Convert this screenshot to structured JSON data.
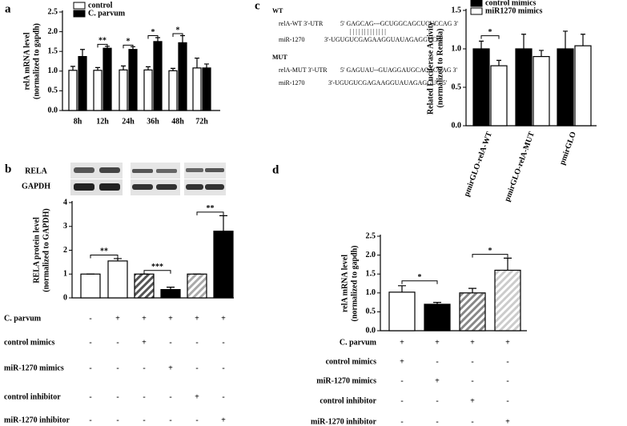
{
  "sequence_panel": {
    "wt_title": "WT",
    "wt_rows": [
      {
        "label": "relA-WT 3'-UTR",
        "seq": "5' GAGCAG---GCUGGCAGCUCUCCAG 3'"
      },
      {
        "label": "miR-1270",
        "seq": "3'-UGUGUCGAGAAGGUAUAGAGGUC-5'"
      }
    ],
    "wt_pairing": "| | |    | |   | | | | | | | |",
    "mut_title": "MUT",
    "mut_rows": [
      {
        "label": "relA-MUT 3'-UTR",
        "seq": "5' GAGUAU--GUAGGAUGCACACGAG 3'"
      },
      {
        "label": "miR-1270",
        "seq": "3'-UGUGUCGAGAAGGUAUAGAGGUC-5'"
      }
    ]
  },
  "blot_labels": [
    "RELA",
    "GAPDH"
  ],
  "chart_data": [
    {
      "type": "bar",
      "panel": "a",
      "ylabel": [
        "relA mRNA level",
        "(normalized to gapdh)"
      ],
      "categories": [
        "8h",
        "12h",
        "24h",
        "36h",
        "48h",
        "72h"
      ],
      "series": [
        {
          "name": "control",
          "color": "#ffffff",
          "values": [
            1.02,
            1.02,
            1.03,
            1.03,
            1.01,
            1.08
          ],
          "errors": [
            0.1,
            0.07,
            0.1,
            0.08,
            0.06,
            0.25
          ]
        },
        {
          "name": "C. parvum",
          "color": "#000000",
          "values": [
            1.37,
            1.58,
            1.55,
            1.75,
            1.72,
            1.08
          ],
          "errors": [
            0.18,
            0.05,
            0.07,
            0.1,
            0.18,
            0.1
          ]
        }
      ],
      "ylim": [
        0,
        2.5
      ],
      "yticks": [
        {
          "value": 0,
          "label": "0.0"
        },
        {
          "value": 0.5,
          "label": "0.5"
        },
        {
          "value": 1,
          "label": "1.0"
        },
        {
          "value": 1.5,
          "label": "1.5"
        },
        {
          "value": 2,
          "label": "2.0"
        },
        {
          "value": 2.5,
          "label": "2.5"
        }
      ],
      "annotations": [
        "**",
        "*",
        "*",
        "*"
      ]
    },
    {
      "type": "bar",
      "panel": "c",
      "ylabel": [
        "Related Luciferase Activity",
        "(normalized to Renilla)"
      ],
      "categories": [
        "pmirGLO-relA-WT",
        "pmirGLO-relA-MUT",
        "pmirGLO"
      ],
      "series": [
        {
          "name": "control mimics",
          "color": "#000000",
          "values": [
            1.0,
            1.0,
            1.0
          ],
          "errors": [
            0.1,
            0.19,
            0.23
          ]
        },
        {
          "name": "miR1270 mimics",
          "color": "#ffffff",
          "values": [
            0.78,
            0.9,
            1.04
          ],
          "errors": [
            0.07,
            0.08,
            0.15
          ]
        }
      ],
      "ylim": [
        0,
        1.5
      ],
      "yticks": [
        {
          "value": 0,
          "label": "0.0"
        },
        {
          "value": 0.5,
          "label": "0.5"
        },
        {
          "value": 1,
          "label": "1.0"
        },
        {
          "value": 1.5,
          "label": "1.5"
        }
      ],
      "annotations": [
        "*"
      ]
    },
    {
      "type": "bar",
      "panel": "b",
      "ylabel": [
        "RELA protein level",
        "(normalized to GAPDH)"
      ],
      "values": [
        1,
        1.55,
        1,
        0.35,
        1,
        2.8
      ],
      "errors": [
        0,
        0.1,
        0,
        0.1,
        0,
        0.65
      ],
      "colors": [
        "#ffffff",
        "#ffffff",
        "#555555",
        "#000000",
        "#aaaaaa",
        "#000000"
      ],
      "patterns": [
        "none",
        "none",
        "diagonal",
        "none",
        "diagonal",
        "none"
      ],
      "ylim": [
        0,
        4
      ],
      "yticks": [
        0,
        1,
        2,
        3,
        4
      ],
      "annotations": [
        "**",
        "***",
        "**"
      ],
      "conditions": [
        {
          "label": "C. parvum",
          "marks": [
            "-",
            "+",
            "+",
            "+",
            "+",
            "+"
          ]
        },
        {
          "label": "control mimics",
          "marks": [
            "-",
            "-",
            "+",
            "-",
            "-",
            "-"
          ]
        },
        {
          "label": "miR-1270 mimics",
          "marks": [
            "-",
            "-",
            "-",
            "+",
            "-",
            "-"
          ]
        },
        {
          "label": "control inhibitor",
          "marks": [
            "-",
            "-",
            "-",
            "-",
            "+",
            "-"
          ]
        },
        {
          "label": "miR-1270 inhibitor",
          "marks": [
            "-",
            "-",
            "-",
            "-",
            "-",
            "+"
          ]
        }
      ]
    },
    {
      "type": "bar",
      "panel": "d",
      "ylabel": [
        "relA mRNA level",
        "(normalized to gapdh)"
      ],
      "values": [
        1.02,
        0.7,
        1.0,
        1.6
      ],
      "errors": [
        0.17,
        0.05,
        0.12,
        0.32
      ],
      "colors": [
        "#ffffff",
        "#000000",
        "#888888",
        "#cccccc"
      ],
      "patterns": [
        "none",
        "none",
        "diagonal",
        "diagonal"
      ],
      "ylim": [
        0,
        2.5
      ],
      "yticks": [
        {
          "value": 0,
          "label": "0.0"
        },
        {
          "value": 0.5,
          "label": "0.5"
        },
        {
          "value": 1,
          "label": "1.0"
        },
        {
          "value": 1.5,
          "label": "1.5"
        },
        {
          "value": 2,
          "label": "2.0"
        },
        {
          "value": 2.5,
          "label": "2.5"
        }
      ],
      "annotations": [
        "*",
        "*"
      ],
      "conditions": [
        {
          "label": "C. parvum",
          "marks": [
            "+",
            "+",
            "+",
            "+"
          ]
        },
        {
          "label": "control mimics",
          "marks": [
            "+",
            "-",
            "-",
            "-"
          ]
        },
        {
          "label": "miR-1270 mimics",
          "marks": [
            "-",
            "+",
            "-",
            "-"
          ]
        },
        {
          "label": "control inhibitor",
          "marks": [
            "-",
            "-",
            "+",
            "-"
          ]
        },
        {
          "label": "miR-1270 inhibitor",
          "marks": [
            "-",
            "-",
            "-",
            "+"
          ]
        }
      ]
    }
  ]
}
